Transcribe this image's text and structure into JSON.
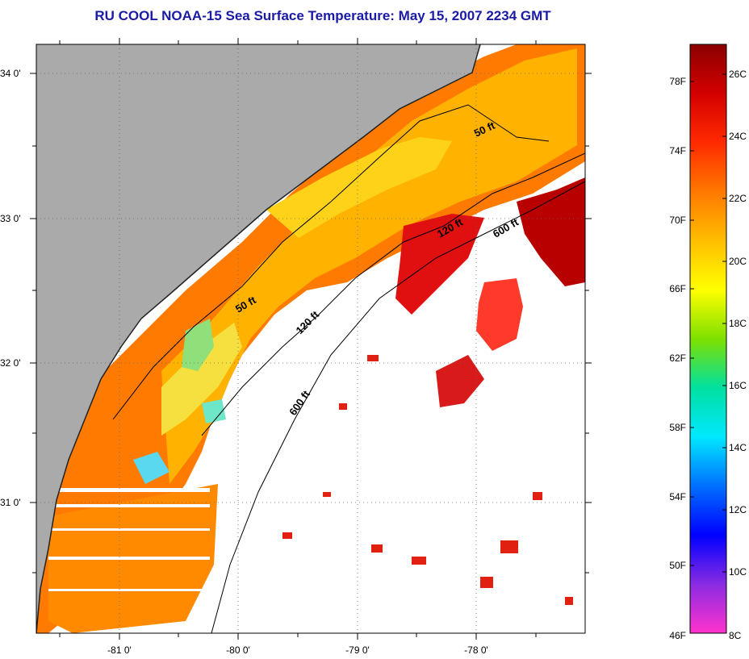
{
  "title": "RU COOL  NOAA-15  Sea Surface Temperature:  May 15, 2007 2234 GMT",
  "map": {
    "land_color": "#aaaaaa",
    "nodata_color": "#ffffff",
    "lat_ticks": [
      "34 0'",
      "33 0'",
      "32 0'",
      "31 0'"
    ],
    "lon_ticks": [
      "-81 0'",
      "-80 0'",
      "-79 0'",
      "-78 0'"
    ],
    "contours": [
      {
        "label": "50 ft",
        "kind": "isobath-50"
      },
      {
        "label": "50 ft",
        "kind": "isobath-50"
      },
      {
        "label": "120 ft",
        "kind": "isobath-120"
      },
      {
        "label": "120 ft",
        "kind": "isobath-120"
      },
      {
        "label": "600 ft",
        "kind": "isobath-600"
      },
      {
        "label": "600 ft",
        "kind": "isobath-600"
      }
    ]
  },
  "colorbar": {
    "fahrenheit_labels": [
      "78F",
      "74F",
      "70F",
      "66F",
      "62F",
      "58F",
      "54F",
      "50F",
      "46F"
    ],
    "celsius_labels": [
      "26C",
      "24C",
      "22C",
      "20C",
      "18C",
      "16C",
      "14C",
      "12C",
      "10C",
      "8C"
    ],
    "colors": [
      "#8b0000",
      "#d40000",
      "#ff2a00",
      "#ff7800",
      "#ffbe00",
      "#ffff00",
      "#7fe000",
      "#00e0a0",
      "#00e8ff",
      "#0070ff",
      "#0000ff",
      "#8a2be2",
      "#ff33cc"
    ]
  }
}
